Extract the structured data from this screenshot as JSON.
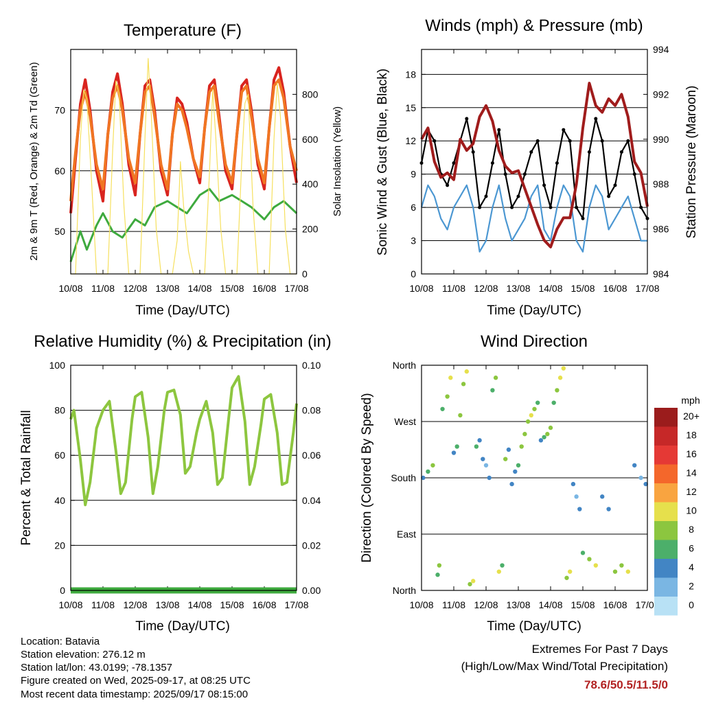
{
  "chart_data": [
    {
      "type": "line",
      "title": "Temperature (F)",
      "xlabel": "Time (Day/UTC)",
      "ylabel": "2m & 9m T (Red, Orange) & 2m Td (Green)",
      "ylabel_right": "Solar Insolation (Yellow)",
      "xticks": [
        "10/08",
        "11/08",
        "12/08",
        "13/08",
        "14/08",
        "15/08",
        "16/08",
        "17/08"
      ],
      "ylim": [
        43,
        80
      ],
      "yticks": [
        50,
        60,
        70
      ],
      "ylim_right": [
        0,
        1000
      ],
      "yticks_right": [
        0,
        200,
        400,
        600,
        800
      ],
      "grid": true,
      "series": [
        {
          "name": "2m T",
          "color": "#d9241f",
          "x": [
            0,
            0.15,
            0.3,
            0.45,
            0.6,
            0.8,
            1.0,
            1.15,
            1.3,
            1.45,
            1.6,
            1.8,
            2.0,
            2.15,
            2.3,
            2.45,
            2.6,
            2.8,
            3.0,
            3.15,
            3.3,
            3.45,
            3.6,
            3.8,
            4.0,
            4.15,
            4.3,
            4.45,
            4.6,
            4.8,
            5.0,
            5.15,
            5.3,
            5.45,
            5.6,
            5.8,
            6.0,
            6.15,
            6.3,
            6.45,
            6.6,
            6.8,
            7.0
          ],
          "y": [
            53,
            62,
            71,
            75,
            70,
            60,
            55,
            66,
            73,
            76,
            71,
            61,
            56,
            66,
            74,
            75,
            70,
            60,
            56,
            66,
            72,
            71,
            68,
            62,
            58,
            67,
            74,
            75,
            69,
            60,
            57,
            66,
            74,
            75,
            70,
            61,
            57,
            67,
            75,
            77,
            73,
            64,
            58
          ]
        },
        {
          "name": "9m T",
          "color": "#f07522",
          "x": [
            0,
            0.15,
            0.3,
            0.45,
            0.6,
            0.8,
            1.0,
            1.15,
            1.3,
            1.45,
            1.6,
            1.8,
            2.0,
            2.15,
            2.3,
            2.45,
            2.6,
            2.8,
            3.0,
            3.15,
            3.3,
            3.45,
            3.6,
            3.8,
            4.0,
            4.15,
            4.3,
            4.45,
            4.6,
            4.8,
            5.0,
            5.15,
            5.3,
            5.45,
            5.6,
            5.8,
            6.0,
            6.15,
            6.3,
            6.45,
            6.6,
            6.8,
            7.0
          ],
          "y": [
            55,
            63,
            70,
            73,
            69,
            61,
            57,
            66,
            72,
            74,
            70,
            62,
            58,
            66,
            73,
            74,
            69,
            61,
            57,
            66,
            71,
            70,
            67,
            62,
            59,
            67,
            73,
            74,
            68,
            61,
            58,
            66,
            73,
            74,
            69,
            62,
            58,
            67,
            74,
            75,
            72,
            64,
            60
          ]
        },
        {
          "name": "2m Td",
          "color": "#3eaa3e",
          "x": [
            0,
            0.3,
            0.5,
            0.8,
            1.0,
            1.3,
            1.6,
            2.0,
            2.3,
            2.6,
            3.0,
            3.3,
            3.6,
            4.0,
            4.3,
            4.6,
            5.0,
            5.3,
            5.6,
            6.0,
            6.3,
            6.6,
            7.0
          ],
          "y": [
            45,
            50,
            47,
            51,
            53,
            50,
            49,
            52,
            51,
            54,
            55,
            54,
            53,
            56,
            57,
            55,
            56,
            55,
            54,
            52,
            54,
            55,
            53
          ]
        },
        {
          "name": "Solar Insolation",
          "color": "#f6e05e",
          "axis": "right",
          "x": [
            0,
            0.15,
            0.3,
            0.4,
            0.5,
            0.65,
            0.8,
            1.15,
            1.3,
            1.4,
            1.5,
            1.65,
            1.8,
            2.15,
            2.3,
            2.4,
            2.5,
            2.65,
            2.8,
            3.15,
            3.3,
            3.4,
            3.5,
            3.65,
            3.8,
            4.15,
            4.3,
            4.4,
            4.5,
            4.65,
            4.8,
            5.15,
            5.3,
            5.4,
            5.5,
            5.65,
            5.8,
            6.15,
            6.3,
            6.4,
            6.5,
            6.65,
            6.8,
            7.0
          ],
          "y": [
            0,
            0,
            600,
            820,
            780,
            400,
            0,
            0,
            550,
            860,
            800,
            300,
            0,
            0,
            600,
            960,
            700,
            200,
            0,
            0,
            150,
            500,
            300,
            100,
            0,
            0,
            450,
            820,
            600,
            200,
            0,
            0,
            500,
            760,
            800,
            300,
            0,
            0,
            600,
            850,
            700,
            200,
            0,
            0
          ]
        }
      ]
    },
    {
      "type": "line",
      "title": "Winds (mph) & Pressure (mb)",
      "xlabel": "Time (Day/UTC)",
      "ylabel": "Sonic Wind & Gust (Blue, Black)",
      "ylabel_right": "Station Pressure (Maroon)",
      "xticks": [
        "10/08",
        "11/08",
        "12/08",
        "13/08",
        "14/08",
        "15/08",
        "16/08",
        "17/08"
      ],
      "ylim": [
        0,
        20.25
      ],
      "yticks": [
        0,
        3,
        6,
        9,
        12,
        15,
        18
      ],
      "ylim_right": [
        984,
        994
      ],
      "yticks_right": [
        984,
        986,
        988,
        990,
        992,
        994
      ],
      "grid": true,
      "series": [
        {
          "name": "Gust",
          "color": "#000000",
          "x": [
            0,
            0.2,
            0.4,
            0.6,
            0.8,
            1.0,
            1.2,
            1.4,
            1.6,
            1.8,
            2.0,
            2.2,
            2.4,
            2.6,
            2.8,
            3.0,
            3.2,
            3.4,
            3.6,
            3.8,
            4.0,
            4.2,
            4.4,
            4.6,
            4.8,
            5.0,
            5.2,
            5.4,
            5.6,
            5.8,
            6.0,
            6.2,
            6.4,
            6.6,
            6.8,
            7.0
          ],
          "y": [
            10,
            13,
            12,
            9,
            8,
            10,
            12,
            14,
            11,
            6,
            7,
            10,
            13,
            9,
            6,
            7,
            9,
            11,
            12,
            8,
            6,
            10,
            13,
            12,
            6,
            5,
            11,
            14,
            12,
            7,
            8,
            11,
            12,
            9,
            6,
            5
          ]
        },
        {
          "name": "Wind",
          "color": "#4b97d2",
          "x": [
            0,
            0.2,
            0.4,
            0.6,
            0.8,
            1.0,
            1.2,
            1.4,
            1.6,
            1.8,
            2.0,
            2.2,
            2.4,
            2.6,
            2.8,
            3.0,
            3.2,
            3.4,
            3.6,
            3.8,
            4.0,
            4.2,
            4.4,
            4.6,
            4.8,
            5.0,
            5.2,
            5.4,
            5.6,
            5.8,
            6.0,
            6.2,
            6.4,
            6.6,
            6.8,
            7.0
          ],
          "y": [
            6,
            8,
            7,
            5,
            4,
            6,
            7,
            8,
            6,
            2,
            3,
            6,
            8,
            5,
            3,
            4,
            5,
            7,
            8,
            4,
            3,
            6,
            8,
            7,
            3,
            2,
            6,
            8,
            7,
            4,
            5,
            6,
            7,
            5,
            3,
            3
          ]
        },
        {
          "name": "Station Pressure",
          "color": "#a01c1c",
          "axis": "right",
          "x": [
            0,
            0.2,
            0.4,
            0.6,
            0.8,
            1.0,
            1.2,
            1.4,
            1.6,
            1.8,
            2.0,
            2.2,
            2.4,
            2.6,
            2.8,
            3.0,
            3.2,
            3.4,
            3.6,
            3.8,
            4.0,
            4.2,
            4.4,
            4.6,
            4.8,
            5.0,
            5.2,
            5.4,
            5.6,
            5.8,
            6.0,
            6.2,
            6.4,
            6.6,
            6.8,
            7.0
          ],
          "y": [
            990,
            990.5,
            989,
            988.3,
            988.5,
            988.2,
            990,
            989.5,
            989.8,
            991,
            991.5,
            990.8,
            989.5,
            988.8,
            988.5,
            988.6,
            987.8,
            987,
            986.2,
            985.5,
            985.2,
            986,
            986.5,
            986.5,
            988,
            990.5,
            992.5,
            991.5,
            991.2,
            991.8,
            991.5,
            992,
            991,
            989,
            988.5,
            987
          ]
        }
      ]
    },
    {
      "type": "line",
      "title": "Relative Humidity (%) & Precipitation (in)",
      "xlabel": "Time (Day/UTC)",
      "ylabel": "Percent & Total Rainfall",
      "xticks": [
        "10/08",
        "11/08",
        "12/08",
        "13/08",
        "14/08",
        "15/08",
        "16/08",
        "17/08"
      ],
      "ylim": [
        0,
        100
      ],
      "yticks": [
        0,
        20,
        40,
        60,
        80,
        100
      ],
      "ylim_right": [
        0,
        0.1
      ],
      "yticks_right": [
        "0.00",
        "0.02",
        "0.04",
        "0.06",
        "0.08",
        "0.10"
      ],
      "grid": true,
      "series": [
        {
          "name": "RH",
          "color": "#8dc63f",
          "x": [
            0,
            0.1,
            0.3,
            0.45,
            0.6,
            0.8,
            1.0,
            1.2,
            1.4,
            1.55,
            1.7,
            1.9,
            2.0,
            2.2,
            2.4,
            2.55,
            2.7,
            2.9,
            3.0,
            3.2,
            3.4,
            3.55,
            3.7,
            3.9,
            4.0,
            4.2,
            4.4,
            4.55,
            4.7,
            4.9,
            5.0,
            5.2,
            5.4,
            5.55,
            5.7,
            5.9,
            6.0,
            6.2,
            6.4,
            6.55,
            6.7,
            6.9,
            7.0
          ],
          "y": [
            76,
            80,
            58,
            38,
            48,
            72,
            80,
            84,
            62,
            43,
            48,
            76,
            86,
            88,
            68,
            43,
            55,
            80,
            88,
            89,
            78,
            52,
            55,
            70,
            76,
            84,
            70,
            47,
            50,
            77,
            90,
            95,
            75,
            47,
            55,
            74,
            85,
            87,
            70,
            47,
            48,
            70,
            83
          ]
        },
        {
          "name": "Precipitation",
          "color": "#3eaa3e",
          "axis": "right",
          "x": [
            0,
            7
          ],
          "y": [
            0,
            0
          ]
        }
      ]
    },
    {
      "type": "scatter",
      "title": "Wind Direction",
      "xlabel": "Time (Day/UTC)",
      "ylabel": "Direction (Colored By Speed)",
      "xticks": [
        "10/08",
        "11/08",
        "12/08",
        "13/08",
        "14/08",
        "15/08",
        "16/08",
        "17/08"
      ],
      "ylim": [
        0,
        360
      ],
      "yticks": [
        "North",
        "East",
        "South",
        "West",
        "North"
      ],
      "ytick_values": [
        0,
        90,
        180,
        270,
        360
      ],
      "grid": true,
      "colorbar": {
        "title": "mph",
        "labels": [
          "20+",
          "18",
          "16",
          "14",
          "12",
          "10",
          "8",
          "6",
          "4",
          "2",
          "0"
        ],
        "colors": [
          "#9b1c1c",
          "#c62828",
          "#e53935",
          "#f4672b",
          "#f9a440",
          "#e6e04c",
          "#8cc63f",
          "#4caf6a",
          "#4285c4",
          "#7ab6e3",
          "#b8e1f5"
        ]
      },
      "series": [
        {
          "name": "Direction",
          "x": [
            0.05,
            0.2,
            0.35,
            0.5,
            0.55,
            0.65,
            0.8,
            0.9,
            1.0,
            1.1,
            1.2,
            1.3,
            1.4,
            1.5,
            1.6,
            1.7,
            1.8,
            1.9,
            2.0,
            2.1,
            2.2,
            2.3,
            2.4,
            2.5,
            2.6,
            2.7,
            2.8,
            2.9,
            3.0,
            3.1,
            3.2,
            3.3,
            3.4,
            3.5,
            3.6,
            3.7,
            3.8,
            3.9,
            4.0,
            4.1,
            4.2,
            4.3,
            4.4,
            4.5,
            4.6,
            4.7,
            4.8,
            4.9,
            5.0,
            5.2,
            5.4,
            5.6,
            5.8,
            6.0,
            6.2,
            6.4,
            6.6,
            6.8,
            6.95
          ],
          "y": [
            180,
            190,
            200,
            25,
            40,
            290,
            310,
            340,
            220,
            230,
            280,
            330,
            350,
            10,
            15,
            230,
            240,
            210,
            200,
            180,
            320,
            340,
            30,
            40,
            210,
            225,
            170,
            190,
            200,
            230,
            250,
            270,
            280,
            290,
            300,
            240,
            245,
            250,
            260,
            300,
            320,
            340,
            355,
            20,
            30,
            170,
            150,
            130,
            60,
            50,
            40,
            150,
            130,
            30,
            40,
            30,
            200,
            180,
            170
          ],
          "speed": [
            4,
            6,
            8,
            6,
            8,
            6,
            8,
            10,
            4,
            6,
            8,
            8,
            10,
            8,
            10,
            6,
            4,
            4,
            2,
            4,
            6,
            8,
            10,
            6,
            8,
            4,
            4,
            4,
            6,
            8,
            8,
            8,
            10,
            8,
            6,
            4,
            6,
            8,
            8,
            6,
            8,
            10,
            10,
            8,
            10,
            4,
            2,
            4,
            6,
            8,
            10,
            4,
            4,
            8,
            8,
            10,
            4,
            2,
            4
          ]
        }
      ]
    }
  ],
  "footer": {
    "location": "Location: Batavia",
    "elevation": "Station elevation: 276.12 m",
    "latlon": "Station lat/lon: 43.0199; -78.1357",
    "created": "Figure created on Wed, 2025-09-17, at 08:25 UTC",
    "recent": "Most recent data timestamp: 2025/09/17 08:15:00"
  },
  "extremes": {
    "title": "Extremes For Past 7 Days",
    "subtitle": "(High/Low/Max Wind/Total Precipitation)",
    "values": "78.6/50.5/11.5/0"
  }
}
